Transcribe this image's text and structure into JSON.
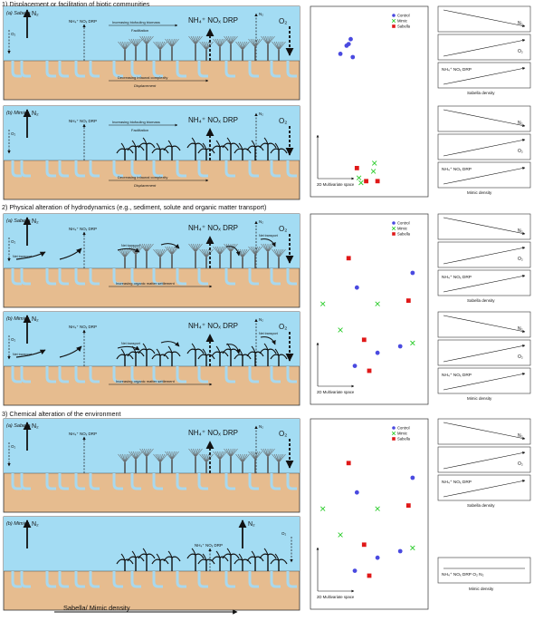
{
  "sections": [
    {
      "title": "1) Displacement or facilitation of biotic communities",
      "panels": [
        {
          "label": "(a) Sabella",
          "species": "sabella",
          "left_flux": {
            "n2": "N₂",
            "o2": "O₂"
          },
          "mid_flux": "NH₄⁺ NOₓ DRP",
          "big_flux": "NH₄⁺ NOₓ DRP",
          "right_flux": {
            "n2": "N₂",
            "o2": "O₂"
          },
          "arrow_top": "Increasing biofouling biomass",
          "arrow_top_sub": "Facilitation",
          "arrow_bottom": "Decreasing infaunal complexity",
          "arrow_bottom_sub": "Displacement"
        },
        {
          "label": "(b) Mimics",
          "species": "mimic",
          "left_flux": {
            "n2": "N₂",
            "o2": "O₂"
          },
          "mid_flux": "NH₄⁺ NOₓ DRP",
          "big_flux": "NH₄⁺ NOₓ DRP",
          "right_flux": {
            "n2": "N₂",
            "o2": "O₂"
          },
          "arrow_top": "Increasing biofouling biomass",
          "arrow_top_sub": "Facilitation",
          "arrow_bottom": "Decreasing infaunal complexity",
          "arrow_bottom_sub": "Displacement"
        }
      ],
      "scatter": {
        "legend": [
          "Control",
          "Mimic",
          "Sabella"
        ],
        "axis_label": "2D Multivariate space",
        "points": {
          "control": [
            [
              0.3,
              0.88
            ],
            [
              0.32,
              0.91
            ],
            [
              0.28,
              0.87
            ],
            [
              0.22,
              0.82
            ],
            [
              0.34,
              0.8
            ]
          ],
          "mimic": [
            [
              0.55,
              0.15
            ],
            [
              0.54,
              0.1
            ],
            [
              0.4,
              0.06
            ],
            [
              0.42,
              0.03
            ]
          ],
          "sabella": [
            [
              0.38,
              0.12
            ],
            [
              0.47,
              0.04
            ],
            [
              0.58,
              0.04
            ]
          ]
        }
      },
      "trend_groups": [
        {
          "caption": "Sabella density",
          "boxes": [
            {
              "label": "N₂",
              "dir": "down"
            },
            {
              "label": "O₂",
              "dir": "up"
            },
            {
              "label": "NH₄⁺ NOₓ DRP",
              "dir": "up"
            }
          ]
        },
        {
          "caption": "Mimic density",
          "boxes": [
            {
              "label": "N₂",
              "dir": "down"
            },
            {
              "label": "O₂",
              "dir": "up"
            },
            {
              "label": "NH₄⁺ NOₓ DRP",
              "dir": "up"
            }
          ]
        }
      ]
    },
    {
      "title": "2) Physical alteration of hydrodynamics (e.g., sediment, solute and organic matter transport)",
      "panels": [
        {
          "label": "(a) Sabella",
          "species": "sabella",
          "left_flux": {
            "n2": "N₂",
            "o2": "O₂"
          },
          "mid_flux": "NH₄⁺ NOₓ DRP",
          "big_flux": "NH₄⁺ NOₓ DRP",
          "right_flux": {
            "n2": "N₂",
            "o2": "O₂"
          },
          "transport": "Net transport",
          "arrow_bottom": "Increasing organic matter settlement"
        },
        {
          "label": "(b) Mimics",
          "species": "mimic",
          "left_flux": {
            "n2": "N₂",
            "o2": "O₂"
          },
          "mid_flux": "NH₄⁺ NOₓ DRP",
          "big_flux": "NH₄⁺ NOₓ DRP",
          "right_flux": {
            "n2": "N₂",
            "o2": "O₂"
          },
          "transport": "Net transport",
          "arrow_bottom": "Increasing organic matter settlement"
        }
      ],
      "scatter": {
        "legend": [
          "Control",
          "Mimic",
          "Sabella"
        ],
        "axis_label": "2D Multivariate space",
        "points": {
          "control": [
            [
              0.38,
              0.66
            ],
            [
              0.92,
              0.75
            ],
            [
              0.58,
              0.26
            ],
            [
              0.36,
              0.18
            ],
            [
              0.8,
              0.3
            ]
          ],
          "mimic": [
            [
              0.05,
              0.56
            ],
            [
              0.58,
              0.56
            ],
            [
              0.22,
              0.4
            ],
            [
              0.92,
              0.32
            ]
          ],
          "sabella": [
            [
              0.3,
              0.84
            ],
            [
              0.88,
              0.58
            ],
            [
              0.45,
              0.34
            ],
            [
              0.5,
              0.15
            ]
          ]
        }
      },
      "trend_groups": [
        {
          "caption": "Sabella density",
          "boxes": [
            {
              "label": "N₂",
              "dir": "down"
            },
            {
              "label": "O₂",
              "dir": "up"
            },
            {
              "label": "NH₄⁺ NOₓ DRP",
              "dir": "up"
            }
          ]
        },
        {
          "caption": "Mimic density",
          "boxes": [
            {
              "label": "N₂",
              "dir": "down"
            },
            {
              "label": "O₂",
              "dir": "up"
            },
            {
              "label": "NH₄⁺ NOₓ DRP",
              "dir": "up"
            }
          ]
        }
      ]
    },
    {
      "title": "3) Chemical alteration of the environment",
      "panels": [
        {
          "label": "(a) Sabella",
          "species": "sabella",
          "left_flux": {
            "n2": "N₂",
            "o2": "O₂"
          },
          "mid_flux": "NH₄⁺ NOₓ DRP",
          "big_flux": "NH₄⁺ NOₓ DRP",
          "right_flux": {
            "n2": "N₂",
            "o2": "O₂"
          }
        },
        {
          "label": "(b) Mimics",
          "species": "mimic",
          "left_flux": {
            "n2": "N₂",
            "o2": ""
          },
          "mid_flux": "",
          "big_flux": "NH₄⁺ NOₓ DRP",
          "right_flux": {
            "n2": "N₂",
            "o2": "O₂"
          }
        }
      ],
      "scatter": {
        "legend": [
          "Control",
          "Mimic",
          "Sabella"
        ],
        "axis_label": "2D Multivariate space",
        "points": {
          "control": [
            [
              0.38,
              0.66
            ],
            [
              0.92,
              0.75
            ],
            [
              0.58,
              0.26
            ],
            [
              0.36,
              0.18
            ],
            [
              0.8,
              0.3
            ]
          ],
          "mimic": [
            [
              0.05,
              0.56
            ],
            [
              0.58,
              0.56
            ],
            [
              0.22,
              0.4
            ],
            [
              0.92,
              0.32
            ]
          ],
          "sabella": [
            [
              0.3,
              0.84
            ],
            [
              0.88,
              0.58
            ],
            [
              0.45,
              0.34
            ],
            [
              0.5,
              0.15
            ]
          ]
        }
      },
      "trend_groups": [
        {
          "caption": "Sabella density",
          "boxes": [
            {
              "label": "N₂",
              "dir": "down"
            },
            {
              "label": "O₂",
              "dir": "up"
            },
            {
              "label": "NH₄⁺ NOₓ DRP",
              "dir": "up"
            }
          ]
        },
        {
          "caption": "Mimic density",
          "boxes": [
            {
              "label": "NH₄⁺ NOₓ DRP     O₂     N₂",
              "dir": "flat"
            }
          ]
        }
      ]
    }
  ],
  "x_axis_label": "Sabella/ Mimic density",
  "colors": {
    "water": "#a3dcf3",
    "sediment": "#e6bc8f",
    "burrow": "#a8d8ee",
    "control": "#4a4ae0",
    "mimic": "#2bcc2b",
    "sabella": "#e01818"
  }
}
